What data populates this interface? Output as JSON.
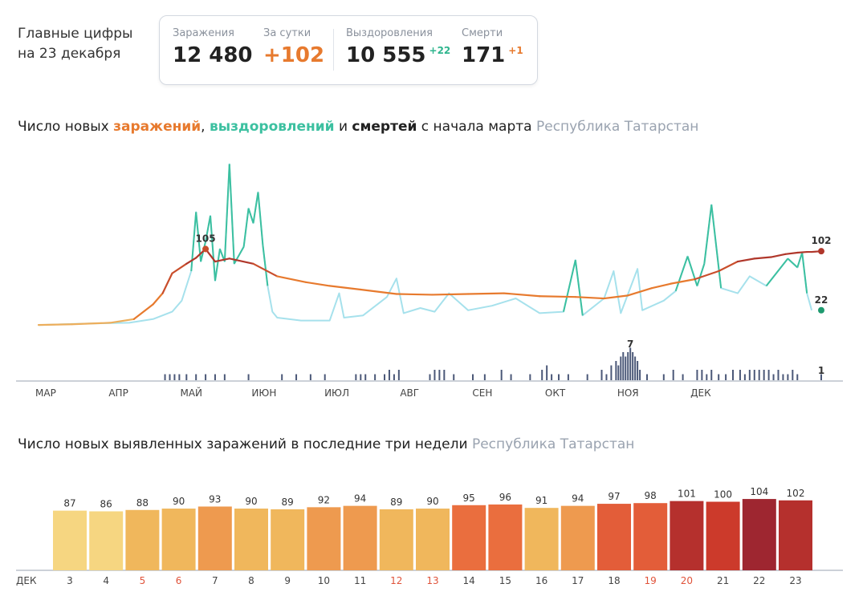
{
  "header": {
    "line1": "Главные цифры",
    "line2": "на 23 декабря"
  },
  "stats": {
    "infections_label": "Заражения",
    "infections_value": "12 480",
    "daily_label": "За сутки",
    "daily_value": "+102",
    "recoveries_label": "Выздоровления",
    "recoveries_value": "10 555",
    "recoveries_delta": "+22",
    "deaths_label": "Смерти",
    "deaths_value": "171",
    "deaths_delta": "+1"
  },
  "colors": {
    "infections": "#e77a2e",
    "infections_late": "#b0372b",
    "recoveries": "#3cc0a0",
    "recoveries_light": "#a6e1ec",
    "deaths": "#4b5878",
    "region": "#9aa3b0"
  },
  "chart1_title": {
    "p1": "Число новых ",
    "infections": "заражений",
    "p2": ", ",
    "recoveries": "выздоровлений",
    "p3": " и ",
    "deaths": "смертей",
    "p4": " с начала марта",
    "region": "Республика Татарстан"
  },
  "chart2_title": {
    "text": "Число новых выявленных заражений в последние три недели",
    "region": "Республика Татарстан"
  },
  "chart_data": [
    {
      "type": "line",
      "x_months": [
        "МАР",
        "АПР",
        "МАЙ",
        "ИЮН",
        "ИЮЛ",
        "АВГ",
        "СЕН",
        "ОКТ",
        "НОЯ",
        "ДЕК"
      ],
      "series": [
        {
          "name": "заражений",
          "points": [
            [
              0,
              2
            ],
            [
              14,
              3
            ],
            [
              30,
              5
            ],
            [
              40,
              10
            ],
            [
              48,
              30
            ],
            [
              52,
              45
            ],
            [
              56,
              72
            ],
            [
              62,
              85
            ],
            [
              66,
              93
            ],
            [
              70,
              105
            ],
            [
              74,
              88
            ],
            [
              80,
              92
            ],
            [
              90,
              85
            ],
            [
              100,
              68
            ],
            [
              112,
              60
            ],
            [
              122,
              55
            ],
            [
              135,
              50
            ],
            [
              150,
              44
            ],
            [
              165,
              43
            ],
            [
              180,
              44
            ],
            [
              195,
              45
            ],
            [
              210,
              41
            ],
            [
              225,
              40
            ],
            [
              237,
              38
            ],
            [
              247,
              42
            ],
            [
              257,
              52
            ],
            [
              265,
              58
            ],
            [
              275,
              64
            ],
            [
              285,
              75
            ],
            [
              293,
              88
            ],
            [
              300,
              92
            ],
            [
              307,
              94
            ],
            [
              313,
              98
            ],
            [
              318,
              100
            ],
            [
              322,
              101
            ],
            [
              324,
              101
            ],
            [
              328,
              102
            ]
          ]
        },
        {
          "name": "выздоровлений",
          "points": [
            [
              0,
              2
            ],
            [
              10,
              3
            ],
            [
              22,
              4
            ],
            [
              38,
              5
            ],
            [
              48,
              10
            ],
            [
              56,
              20
            ],
            [
              60,
              35
            ],
            [
              64,
              75
            ],
            [
              66,
              155
            ],
            [
              68,
              88
            ],
            [
              70,
              115
            ],
            [
              72,
              150
            ],
            [
              74,
              62
            ],
            [
              76,
              105
            ],
            [
              78,
              88
            ],
            [
              80,
              220
            ],
            [
              82,
              85
            ],
            [
              86,
              108
            ],
            [
              88,
              160
            ],
            [
              90,
              140
            ],
            [
              92,
              182
            ],
            [
              94,
              110
            ],
            [
              96,
              55
            ],
            [
              98,
              20
            ],
            [
              100,
              12
            ],
            [
              110,
              8
            ],
            [
              122,
              8
            ],
            [
              126,
              45
            ],
            [
              128,
              12
            ],
            [
              136,
              15
            ],
            [
              142,
              30
            ],
            [
              146,
              40
            ],
            [
              150,
              65
            ],
            [
              153,
              18
            ],
            [
              160,
              25
            ],
            [
              166,
              20
            ],
            [
              172,
              45
            ],
            [
              180,
              22
            ],
            [
              190,
              28
            ],
            [
              200,
              38
            ],
            [
              210,
              18
            ],
            [
              220,
              20
            ],
            [
              225,
              90
            ],
            [
              228,
              15
            ],
            [
              237,
              38
            ],
            [
              241,
              75
            ],
            [
              244,
              18
            ],
            [
              251,
              78
            ],
            [
              253,
              22
            ],
            [
              262,
              35
            ],
            [
              267,
              48
            ],
            [
              272,
              95
            ],
            [
              276,
              55
            ],
            [
              279,
              85
            ],
            [
              282,
              165
            ],
            [
              286,
              52
            ],
            [
              293,
              45
            ],
            [
              298,
              68
            ],
            [
              305,
              55
            ],
            [
              314,
              92
            ],
            [
              318,
              80
            ],
            [
              320,
              100
            ],
            [
              322,
              45
            ],
            [
              324,
              22
            ]
          ]
        },
        {
          "name": "смертей",
          "bars": [
            [
              53,
              1
            ],
            [
              55,
              1
            ],
            [
              57,
              1
            ],
            [
              59,
              1
            ],
            [
              62,
              1
            ],
            [
              66,
              1
            ],
            [
              70,
              1
            ],
            [
              74,
              1
            ],
            [
              78,
              1
            ],
            [
              88,
              1
            ],
            [
              102,
              1
            ],
            [
              108,
              1
            ],
            [
              114,
              1
            ],
            [
              120,
              1
            ],
            [
              133,
              1
            ],
            [
              135,
              1
            ],
            [
              137,
              1
            ],
            [
              141,
              1
            ],
            [
              145,
              1
            ],
            [
              147,
              2
            ],
            [
              149,
              1
            ],
            [
              151,
              2
            ],
            [
              164,
              1
            ],
            [
              166,
              2
            ],
            [
              168,
              2
            ],
            [
              170,
              2
            ],
            [
              174,
              1
            ],
            [
              182,
              1
            ],
            [
              187,
              1
            ],
            [
              194,
              2
            ],
            [
              198,
              1
            ],
            [
              206,
              1
            ],
            [
              211,
              2
            ],
            [
              213,
              3
            ],
            [
              215,
              1
            ],
            [
              218,
              1
            ],
            [
              222,
              1
            ],
            [
              230,
              1
            ],
            [
              236,
              2
            ],
            [
              238,
              1
            ],
            [
              240,
              3
            ],
            [
              242,
              4
            ],
            [
              243,
              3
            ],
            [
              244,
              5
            ],
            [
              245,
              6
            ],
            [
              246,
              5
            ],
            [
              247,
              6
            ],
            [
              248,
              7
            ],
            [
              249,
              6
            ],
            [
              250,
              5
            ],
            [
              251,
              4
            ],
            [
              252,
              2
            ],
            [
              255,
              1
            ],
            [
              262,
              1
            ],
            [
              266,
              2
            ],
            [
              270,
              1
            ],
            [
              276,
              2
            ],
            [
              278,
              2
            ],
            [
              280,
              1
            ],
            [
              282,
              2
            ],
            [
              285,
              1
            ],
            [
              288,
              1
            ],
            [
              291,
              2
            ],
            [
              294,
              2
            ],
            [
              296,
              1
            ],
            [
              298,
              2
            ],
            [
              300,
              2
            ],
            [
              302,
              2
            ],
            [
              304,
              2
            ],
            [
              306,
              2
            ],
            [
              308,
              1
            ],
            [
              310,
              2
            ],
            [
              312,
              1
            ],
            [
              314,
              1
            ],
            [
              316,
              2
            ],
            [
              318,
              1
            ],
            [
              328,
              1
            ]
          ]
        }
      ],
      "labels": [
        "105",
        "102",
        "22",
        "7",
        "1"
      ]
    },
    {
      "type": "bar",
      "month_label": "ДЕК",
      "categories": [
        "3",
        "4",
        "5",
        "6",
        "7",
        "8",
        "9",
        "10",
        "11",
        "12",
        "13",
        "14",
        "15",
        "16",
        "17",
        "18",
        "19",
        "20",
        "21",
        "22",
        "23"
      ],
      "values": [
        87,
        86,
        88,
        90,
        93,
        90,
        89,
        92,
        94,
        89,
        90,
        95,
        96,
        91,
        94,
        97,
        98,
        101,
        100,
        104,
        102
      ],
      "weekend": [
        false,
        false,
        true,
        true,
        false,
        false,
        false,
        false,
        false,
        true,
        true,
        false,
        false,
        false,
        false,
        false,
        true,
        true,
        false,
        false,
        false
      ]
    }
  ]
}
